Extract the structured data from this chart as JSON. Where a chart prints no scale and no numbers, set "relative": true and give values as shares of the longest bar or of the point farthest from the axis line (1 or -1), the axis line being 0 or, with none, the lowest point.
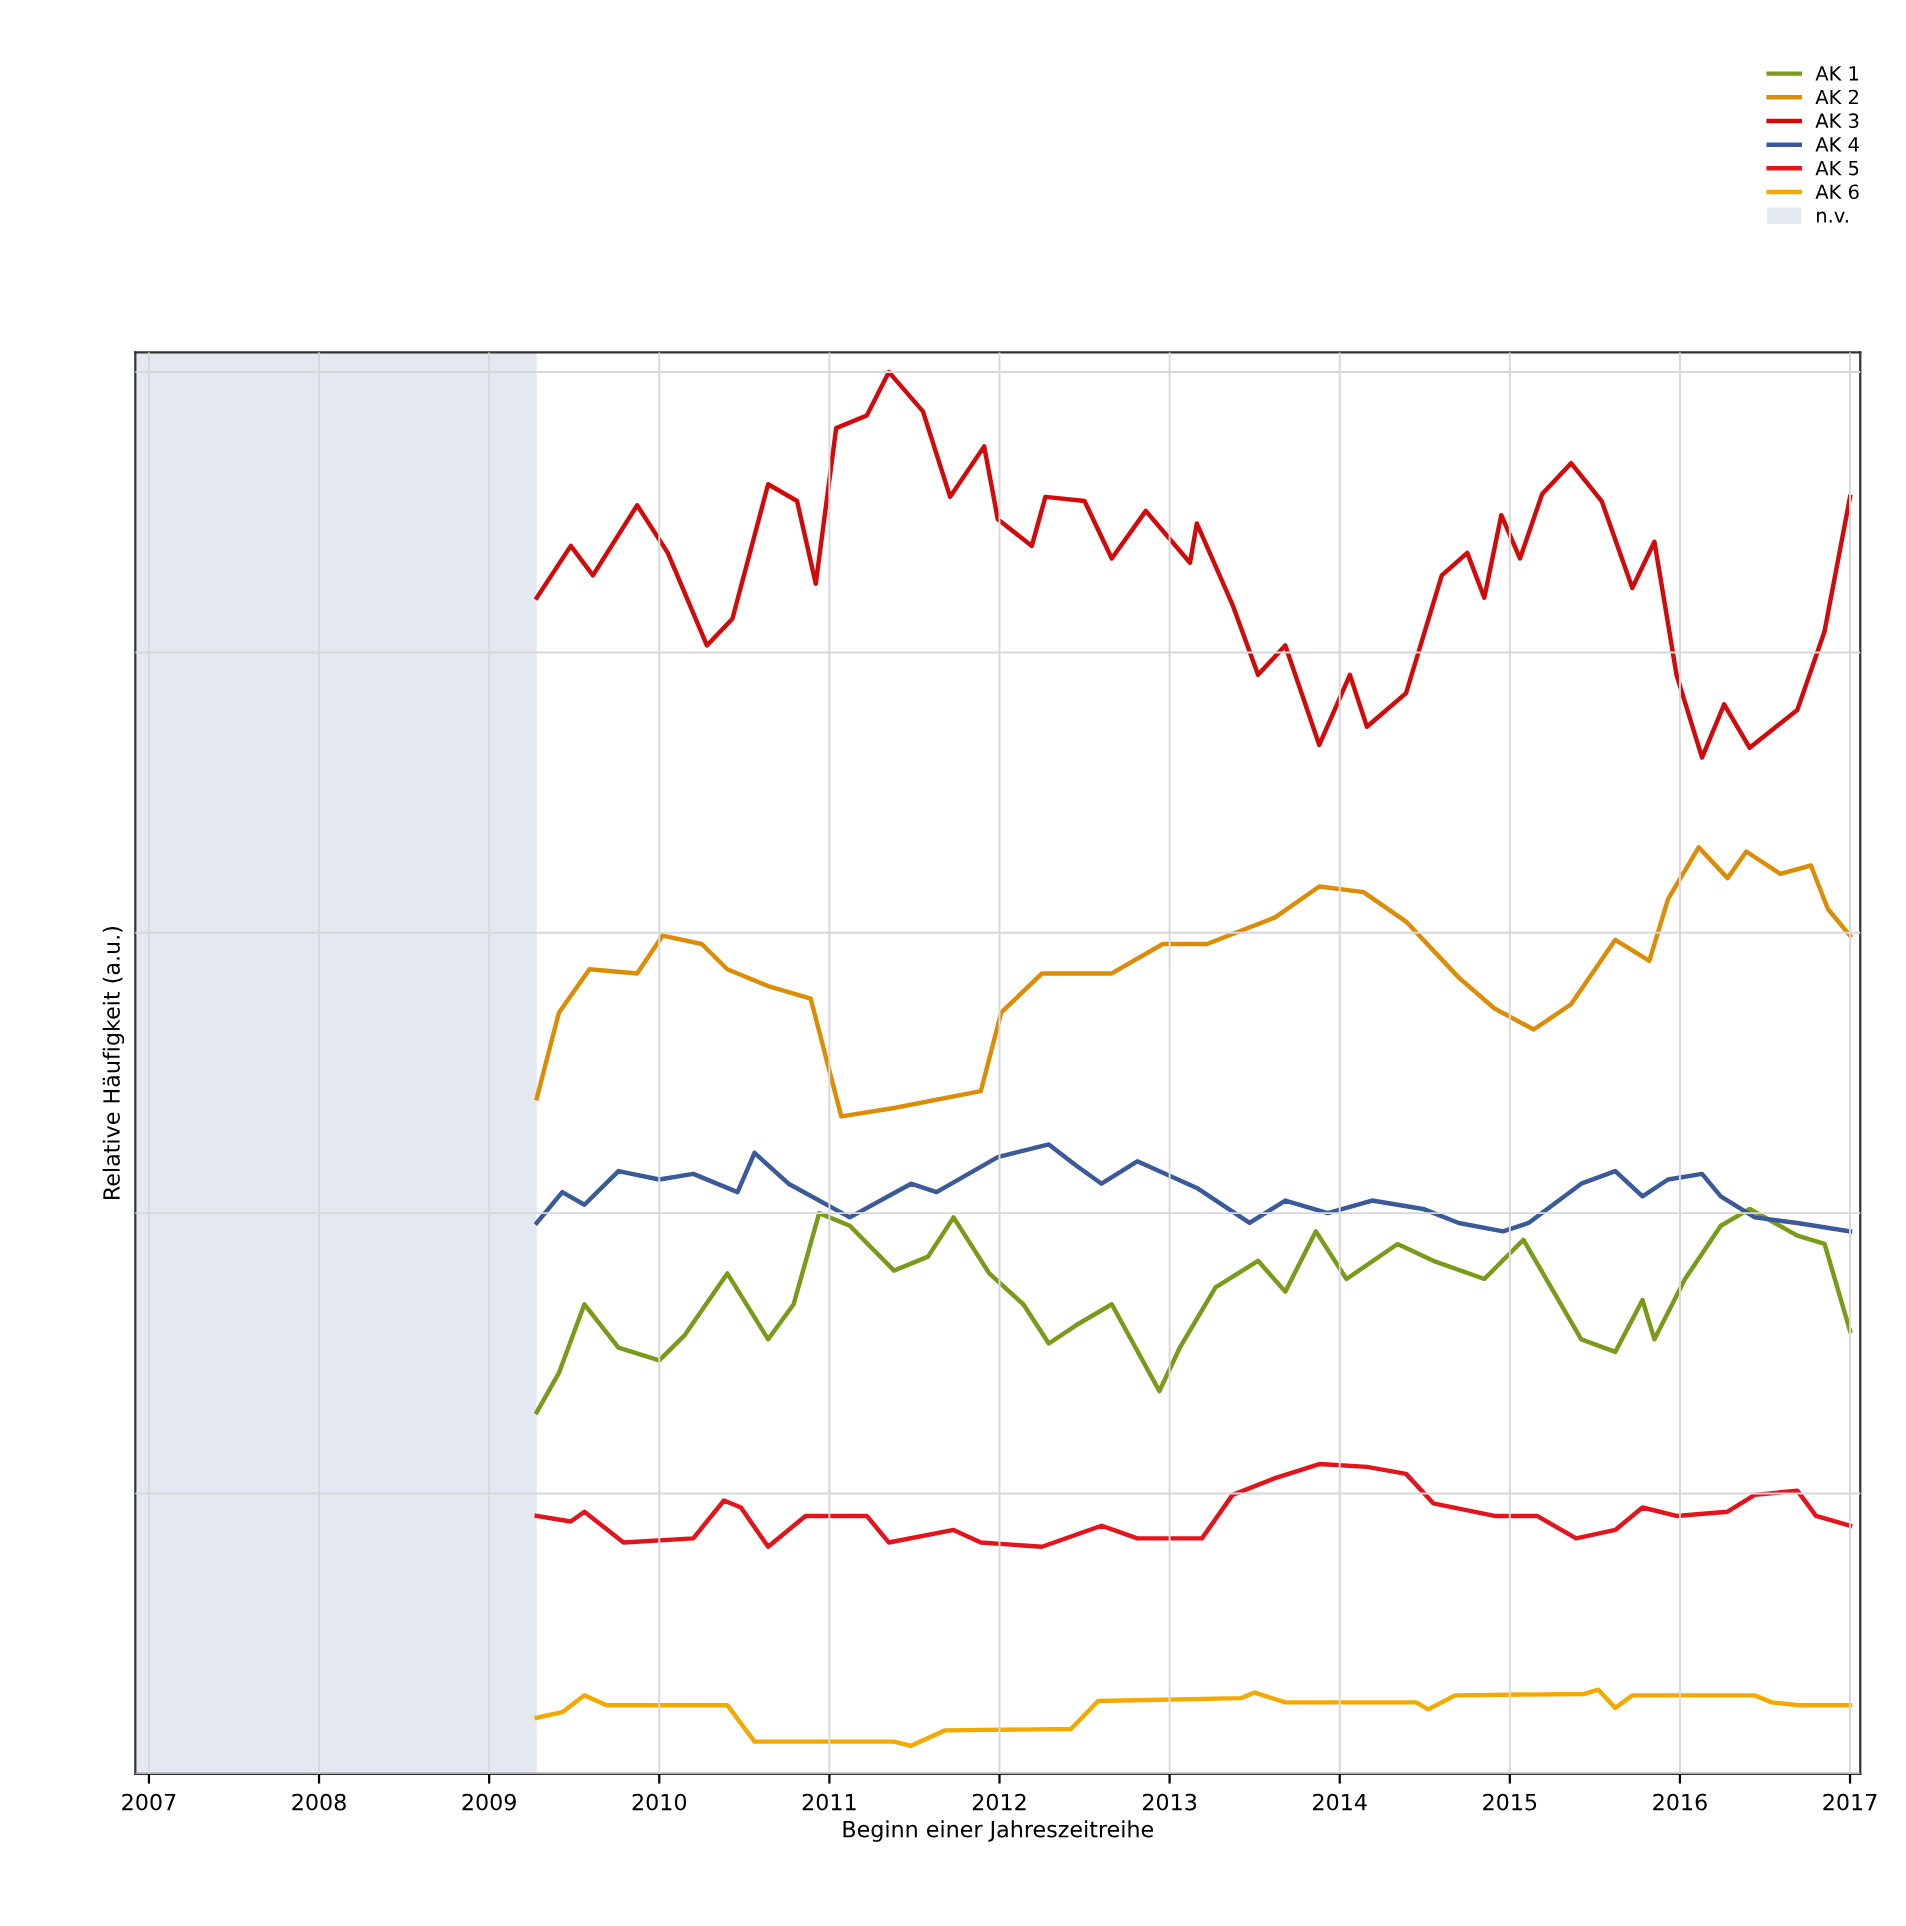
{
  "chart_data": {
    "type": "line",
    "relative": true,
    "xlabel": "Beginn einer Jahreszeitreihe",
    "ylabel": "Relative Häufigkeit (a.u.)",
    "xlim": [
      2006.92,
      2017.06
    ],
    "xticks": [
      2007,
      2008,
      2009,
      2010,
      2011,
      2012,
      2013,
      2014,
      2015,
      2016,
      2017
    ],
    "grid": true,
    "legend": "top right",
    "tick_labels": "x",
    "line_style": "solid",
    "bands": [
      {
        "axis": "x",
        "from": 2006.92,
        "to": 2009.28,
        "label": "n.v.",
        "color": "#e4e8f1"
      }
    ],
    "series": [
      {
        "name": "AK 1",
        "color": "#7a9a1a",
        "x": [
          2009.28,
          2009.41,
          2009.56,
          2009.76,
          2010.0,
          2010.15,
          2010.4,
          2010.64,
          2010.79,
          2010.94,
          2011.12,
          2011.38,
          2011.58,
          2011.73,
          2011.94,
          2012.14,
          2012.29,
          2012.45,
          2012.66,
          2012.94,
          2013.06,
          2013.27,
          2013.52,
          2013.68,
          2013.86,
          2014.04,
          2014.34,
          2014.55,
          2014.85,
          2015.08,
          2015.42,
          2015.62,
          2015.78,
          2015.85,
          2016.03,
          2016.24,
          2016.41,
          2016.69,
          2016.85,
          2017.0
        ],
        "values": [
          0.258,
          0.286,
          0.335,
          0.304,
          0.295,
          0.313,
          0.357,
          0.31,
          0.335,
          0.4,
          0.391,
          0.359,
          0.369,
          0.397,
          0.357,
          0.335,
          0.307,
          0.32,
          0.335,
          0.273,
          0.304,
          0.347,
          0.366,
          0.344,
          0.387,
          0.353,
          0.378,
          0.366,
          0.353,
          0.381,
          0.31,
          0.301,
          0.338,
          0.31,
          0.353,
          0.391,
          0.403,
          0.384,
          0.378,
          0.316
        ]
      },
      {
        "name": "AK 2",
        "color": "#dd8c06",
        "x": [
          2009.28,
          2009.41,
          2009.59,
          2009.87,
          2010.02,
          2010.25,
          2010.4,
          2010.64,
          2010.89,
          2011.07,
          2011.38,
          2011.89,
          2012.01,
          2012.25,
          2012.66,
          2012.96,
          2013.22,
          2013.62,
          2013.88,
          2014.14,
          2014.39,
          2014.7,
          2014.91,
          2015.14,
          2015.36,
          2015.62,
          2015.82,
          2015.93,
          2016.11,
          2016.28,
          2016.39,
          2016.59,
          2016.77,
          2016.87,
          2017.0
        ],
        "values": [
          0.482,
          0.543,
          0.574,
          0.571,
          0.598,
          0.592,
          0.574,
          0.562,
          0.553,
          0.469,
          0.475,
          0.487,
          0.543,
          0.571,
          0.571,
          0.592,
          0.592,
          0.611,
          0.633,
          0.629,
          0.608,
          0.568,
          0.546,
          0.531,
          0.549,
          0.595,
          0.58,
          0.624,
          0.661,
          0.639,
          0.658,
          0.642,
          0.648,
          0.617,
          0.598
        ]
      },
      {
        "name": "AK 3",
        "color": "#d20a0a",
        "x": [
          2009.28,
          2009.48,
          2009.61,
          2009.87,
          2010.05,
          2010.28,
          2010.43,
          2010.64,
          2010.81,
          2010.92,
          2011.04,
          2011.22,
          2011.35,
          2011.55,
          2011.71,
          2011.91,
          2011.99,
          2012.19,
          2012.27,
          2012.5,
          2012.66,
          2012.86,
          2013.12,
          2013.16,
          2013.37,
          2013.52,
          2013.68,
          2013.88,
          2014.06,
          2014.16,
          2014.39,
          2014.6,
          2014.75,
          2014.85,
          2014.95,
          2015.06,
          2015.19,
          2015.36,
          2015.54,
          2015.72,
          2015.85,
          2015.98,
          2016.13,
          2016.26,
          2016.41,
          2016.69,
          2016.85,
          2017.0
        ],
        "values": [
          0.839,
          0.876,
          0.855,
          0.905,
          0.871,
          0.805,
          0.824,
          0.92,
          0.908,
          0.849,
          0.96,
          0.969,
          1,
          0.972,
          0.911,
          0.947,
          0.895,
          0.876,
          0.911,
          0.908,
          0.867,
          0.901,
          0.864,
          0.892,
          0.834,
          0.784,
          0.805,
          0.734,
          0.784,
          0.747,
          0.771,
          0.855,
          0.871,
          0.839,
          0.898,
          0.867,
          0.913,
          0.935,
          0.908,
          0.846,
          0.879,
          0.784,
          0.725,
          0.763,
          0.732,
          0.759,
          0.815,
          0.911
        ]
      },
      {
        "name": "AK 4",
        "color": "#3b5b98",
        "x": [
          2009.28,
          2009.43,
          2009.56,
          2009.76,
          2010.0,
          2010.2,
          2010.46,
          2010.56,
          2010.76,
          2011.12,
          2011.48,
          2011.63,
          2011.99,
          2012.29,
          2012.45,
          2012.6,
          2012.81,
          2013.16,
          2013.47,
          2013.68,
          2013.93,
          2014.19,
          2014.49,
          2014.7,
          2014.96,
          2015.11,
          2015.42,
          2015.62,
          2015.78,
          2015.93,
          2016.13,
          2016.24,
          2016.44,
          2016.69,
          2017.0
        ],
        "values": [
          0.393,
          0.415,
          0.406,
          0.43,
          0.424,
          0.428,
          0.415,
          0.443,
          0.421,
          0.397,
          0.421,
          0.415,
          0.44,
          0.449,
          0.434,
          0.421,
          0.437,
          0.418,
          0.393,
          0.409,
          0.4,
          0.409,
          0.403,
          0.393,
          0.387,
          0.393,
          0.421,
          0.43,
          0.412,
          0.424,
          0.428,
          0.412,
          0.397,
          0.393,
          0.387
        ]
      },
      {
        "name": "AK 5",
        "color": "#e3141c",
        "x": [
          2009.28,
          2009.48,
          2009.56,
          2009.79,
          2010.2,
          2010.38,
          2010.48,
          2010.64,
          2010.86,
          2011.22,
          2011.35,
          2011.73,
          2011.89,
          2012.25,
          2012.6,
          2012.81,
          2013.19,
          2013.37,
          2013.62,
          2013.88,
          2014.16,
          2014.39,
          2014.55,
          2014.91,
          2015.16,
          2015.39,
          2015.62,
          2015.78,
          2015.98,
          2016.28,
          2016.44,
          2016.69,
          2016.8,
          2017.0
        ],
        "values": [
          0.184,
          0.18,
          0.187,
          0.165,
          0.168,
          0.195,
          0.19,
          0.162,
          0.184,
          0.184,
          0.165,
          0.174,
          0.165,
          0.162,
          0.177,
          0.168,
          0.168,
          0.199,
          0.211,
          0.221,
          0.219,
          0.214,
          0.193,
          0.184,
          0.184,
          0.168,
          0.174,
          0.19,
          0.184,
          0.187,
          0.199,
          0.202,
          0.184,
          0.177
        ]
      },
      {
        "name": "AK 6",
        "color": "#f2a900",
        "x": [
          2009.28,
          2009.43,
          2009.56,
          2009.69,
          2010.4,
          2010.56,
          2011.38,
          2011.48,
          2011.68,
          2012.42,
          2012.58,
          2013.42,
          2013.5,
          2013.68,
          2014.45,
          2014.52,
          2014.68,
          2015.44,
          2015.52,
          2015.62,
          2015.72,
          2016.44,
          2016.54,
          2016.69,
          2017.0
        ],
        "values": [
          0.04,
          0.044,
          0.056,
          0.049,
          0.049,
          0.023,
          0.023,
          0.02,
          0.031,
          0.032,
          0.052,
          0.054,
          0.058,
          0.051,
          0.051,
          0.046,
          0.056,
          0.057,
          0.06,
          0.047,
          0.056,
          0.056,
          0.051,
          0.049,
          0.049
        ]
      }
    ]
  }
}
